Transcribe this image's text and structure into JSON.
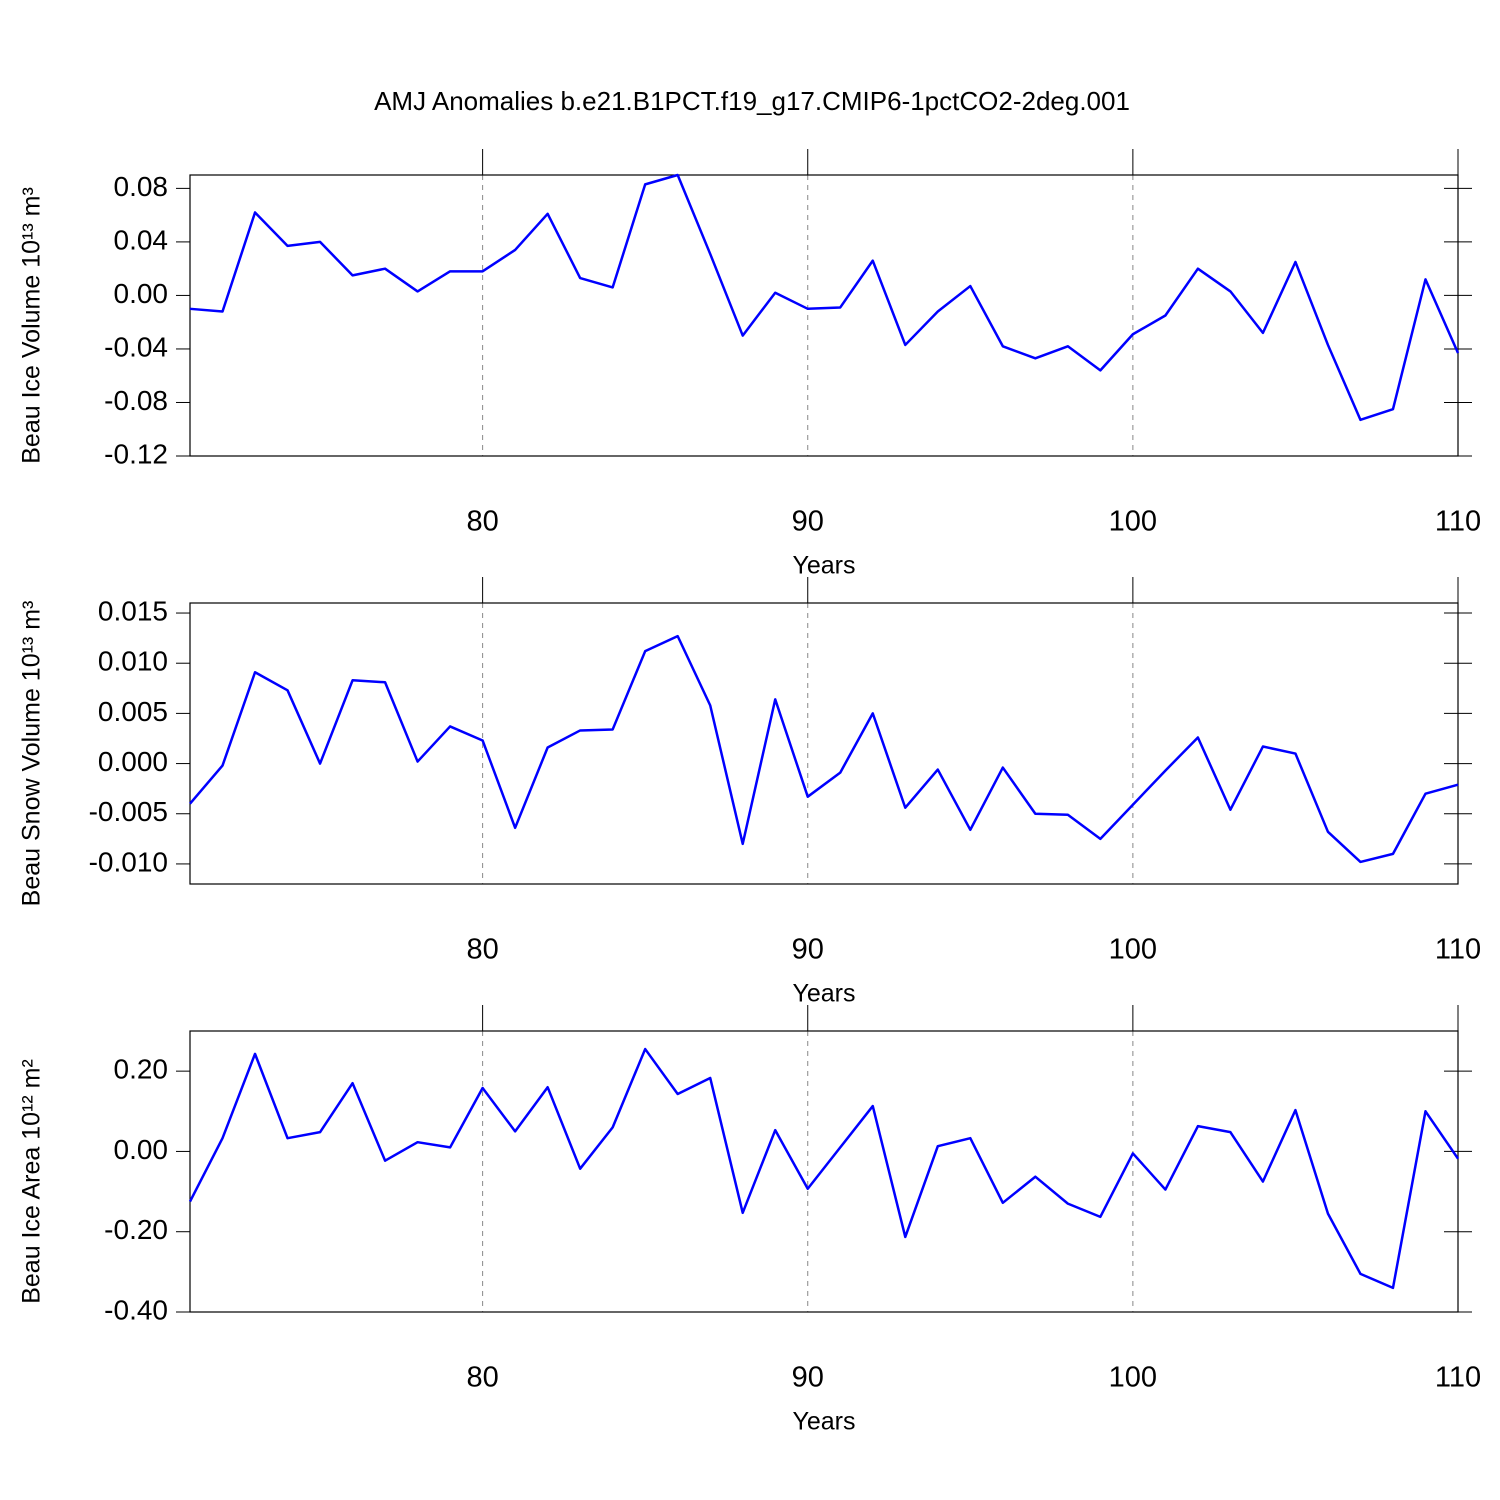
{
  "chart_data": [
    {
      "type": "line",
      "title": "AMJ Anomalies b.e21.B1PCT.f19_g17.CMIP6-1pctCO2-2deg.001",
      "xlabel": "Years",
      "ylabel": "Beau Ice Volume 10¹³ m³",
      "color": "#0000ff",
      "grid": true,
      "x": [
        71,
        72,
        73,
        74,
        75,
        76,
        77,
        78,
        79,
        80,
        81,
        82,
        83,
        84,
        85,
        86,
        87,
        88,
        89,
        90,
        91,
        92,
        93,
        94,
        95,
        96,
        97,
        98,
        99,
        100,
        101,
        102,
        103,
        104,
        105,
        106,
        107,
        108,
        109,
        110
      ],
      "values": [
        -0.01,
        -0.012,
        0.062,
        0.037,
        0.04,
        0.015,
        0.02,
        0.003,
        0.018,
        0.018,
        0.034,
        0.061,
        0.013,
        0.006,
        0.083,
        0.09,
        0.031,
        -0.03,
        0.002,
        -0.01,
        -0.009,
        0.026,
        -0.037,
        -0.012,
        0.007,
        -0.038,
        -0.047,
        -0.038,
        -0.056,
        -0.029,
        -0.015,
        0.02,
        0.003,
        -0.028,
        0.025,
        -0.037,
        -0.093,
        -0.085,
        0.012,
        -0.043
      ],
      "xlim": [
        71,
        110
      ],
      "xticks": [
        80,
        90,
        100,
        110
      ],
      "ylim": [
        -0.12,
        0.09
      ],
      "yticks": [
        0.08,
        0.04,
        {
          "value": 0,
          "label": "0.00"
        },
        -0.04,
        -0.08,
        -0.12
      ]
    },
    {
      "type": "line",
      "xlabel": "Years",
      "ylabel": "Beau Snow Volume 10¹³ m³",
      "color": "#0000ff",
      "grid": true,
      "x": [
        71,
        72,
        73,
        74,
        75,
        76,
        77,
        78,
        79,
        80,
        81,
        82,
        83,
        84,
        85,
        86,
        87,
        88,
        89,
        90,
        91,
        92,
        93,
        94,
        95,
        96,
        97,
        98,
        99,
        100,
        101,
        102,
        103,
        104,
        105,
        106,
        107,
        108,
        109,
        110
      ],
      "values": [
        -0.004,
        -0.0002,
        0.0091,
        0.0073,
        0.0,
        0.0083,
        0.0081,
        0.0002,
        0.0037,
        0.0023,
        -0.0064,
        0.0016,
        0.0033,
        0.0034,
        0.0112,
        0.0127,
        0.0058,
        -0.008,
        0.0064,
        -0.0033,
        -0.0009,
        0.005,
        -0.0044,
        -0.0006,
        -0.0066,
        -0.0004,
        -0.005,
        -0.0051,
        -0.0075,
        -0.0041,
        -0.0007,
        0.0026,
        -0.0046,
        0.0017,
        0.001,
        -0.0068,
        -0.0098,
        -0.009,
        -0.003,
        -0.0021
      ],
      "xlim": [
        71,
        110
      ],
      "xticks": [
        80,
        90,
        100,
        110
      ],
      "ylim": [
        -0.012,
        0.016
      ],
      "yticks": [
        0.015,
        {
          "value": 0.01,
          "label": "0.010"
        },
        0.005,
        {
          "value": 0,
          "label": "0.000"
        },
        -0.005,
        {
          "value": -0.01,
          "label": "-0.010"
        }
      ]
    },
    {
      "type": "line",
      "xlabel": "Years",
      "ylabel": "Beau Ice Area 10¹² m²",
      "color": "#0000ff",
      "grid": true,
      "x": [
        71,
        72,
        73,
        74,
        75,
        76,
        77,
        78,
        79,
        80,
        81,
        82,
        83,
        84,
        85,
        86,
        87,
        88,
        89,
        90,
        91,
        92,
        93,
        94,
        95,
        96,
        97,
        98,
        99,
        100,
        101,
        102,
        103,
        104,
        105,
        106,
        107,
        108,
        109,
        110
      ],
      "values": [
        -0.125,
        0.033,
        0.243,
        0.033,
        0.048,
        0.17,
        -0.023,
        0.023,
        0.01,
        0.158,
        0.05,
        0.16,
        -0.043,
        0.06,
        0.255,
        0.143,
        0.183,
        -0.153,
        0.053,
        -0.093,
        0.01,
        0.113,
        -0.213,
        0.013,
        0.033,
        -0.128,
        -0.063,
        -0.13,
        -0.163,
        -0.005,
        -0.095,
        0.063,
        0.048,
        -0.075,
        0.103,
        -0.155,
        -0.305,
        -0.34,
        0.1,
        -0.018
      ],
      "xlim": [
        71,
        110
      ],
      "xticks": [
        80,
        90,
        100,
        110
      ],
      "ylim": [
        -0.4,
        0.3
      ],
      "yticks": [
        {
          "value": 0.2,
          "label": "0.20"
        },
        {
          "value": 0,
          "label": "0.00"
        },
        {
          "value": -0.2,
          "label": "-0.20"
        },
        {
          "value": -0.4,
          "label": "-0.40"
        }
      ]
    }
  ]
}
